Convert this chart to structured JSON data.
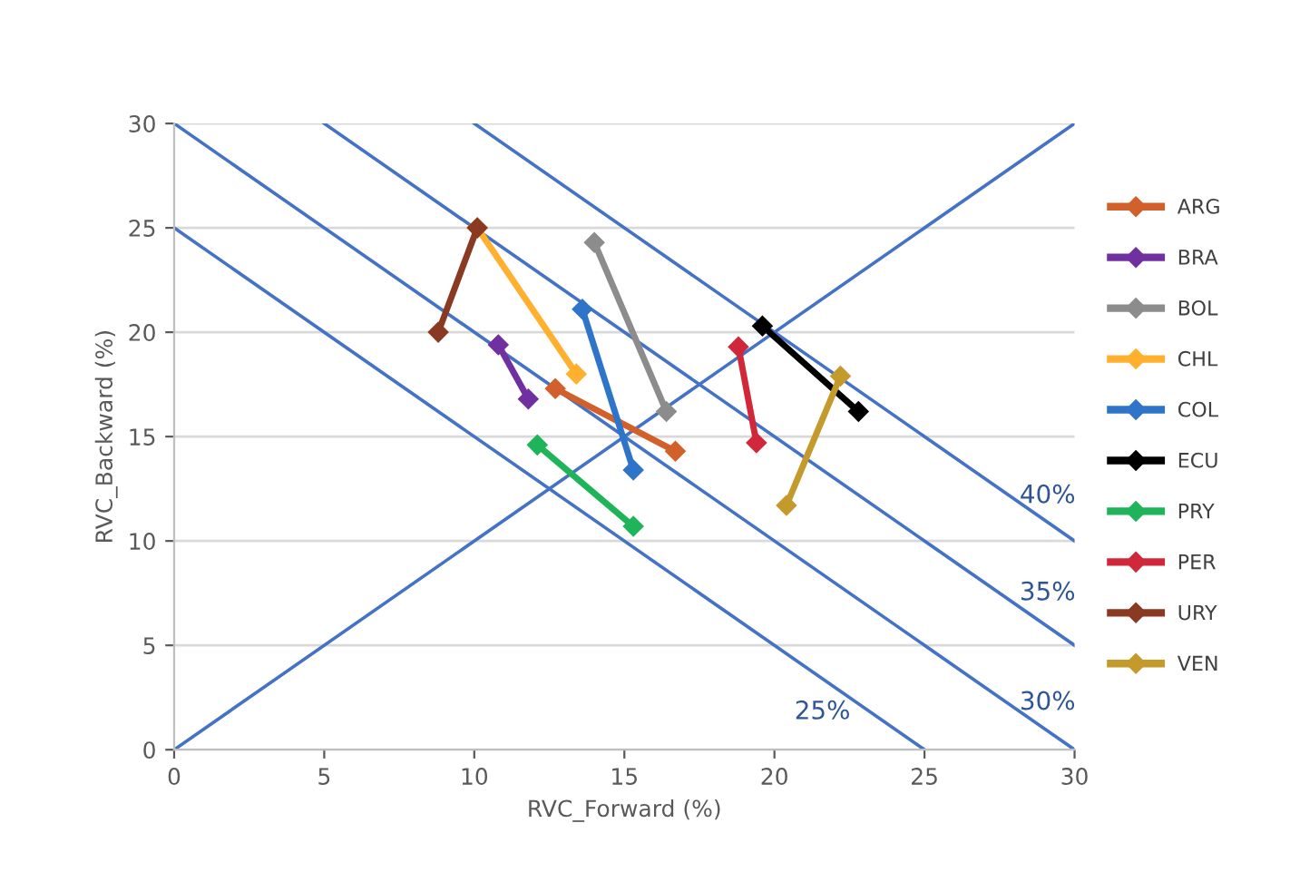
{
  "chart_data": {
    "type": "line",
    "xlabel": "RVC_Forward (%)",
    "ylabel": "RVC_Backward (%)",
    "xlim": [
      0,
      30
    ],
    "ylim": [
      0,
      30
    ],
    "xticks": [
      0,
      5,
      10,
      15,
      20,
      25,
      30
    ],
    "yticks": [
      0,
      5,
      10,
      15,
      20,
      25,
      30
    ],
    "grid": "y",
    "legend": "right",
    "line_style": "solid",
    "marker": "diamond",
    "series": [
      {
        "color": "#4472c4",
        "marker": "none",
        "x": [
          0,
          30
        ],
        "values": [
          0,
          30
        ]
      },
      {
        "color": "#4472c4",
        "marker": "none",
        "x": [
          0,
          25
        ],
        "values": [
          25,
          0
        ]
      },
      {
        "color": "#4472c4",
        "marker": "none",
        "x": [
          0,
          30
        ],
        "values": [
          30,
          0
        ]
      },
      {
        "color": "#4472c4",
        "marker": "none",
        "x": [
          5,
          30
        ],
        "values": [
          30,
          5
        ]
      },
      {
        "color": "#4472c4",
        "marker": "none",
        "x": [
          10,
          30
        ],
        "values": [
          30,
          10
        ]
      },
      {
        "name": "ARG",
        "color": "#d2602a",
        "x": [
          12.7,
          16.7
        ],
        "values": [
          17.3,
          14.3
        ]
      },
      {
        "name": "BRA",
        "color": "#7030a0",
        "x": [
          10.8,
          11.8
        ],
        "values": [
          19.4,
          16.8
        ]
      },
      {
        "name": "BOL",
        "color": "#8c8c8c",
        "x": [
          14.0,
          16.4
        ],
        "values": [
          24.3,
          16.2
        ]
      },
      {
        "name": "CHL",
        "color": "#ffb02e",
        "x": [
          10.1,
          13.4
        ],
        "values": [
          25.0,
          18.0
        ]
      },
      {
        "name": "COL",
        "color": "#2e74c9",
        "x": [
          13.6,
          15.3
        ],
        "values": [
          21.1,
          13.4
        ]
      },
      {
        "name": "ECU",
        "color": "#000000",
        "x": [
          19.6,
          22.8
        ],
        "values": [
          20.3,
          16.2
        ]
      },
      {
        "name": "PRY",
        "color": "#1fb45a",
        "x": [
          12.1,
          15.3
        ],
        "values": [
          14.6,
          10.7
        ]
      },
      {
        "name": "PER",
        "color": "#d0283a",
        "x": [
          18.8,
          19.4
        ],
        "values": [
          19.3,
          14.7
        ]
      },
      {
        "name": "URY",
        "color": "#8a3a22",
        "x": [
          8.8,
          10.1
        ],
        "values": [
          20.0,
          25.0
        ]
      },
      {
        "name": "VEN",
        "color": "#c49a2c",
        "x": [
          22.2,
          20.4
        ],
        "values": [
          17.9,
          11.7
        ]
      }
    ],
    "annotations": [
      "40%",
      "35%",
      "30%",
      "25%"
    ]
  }
}
